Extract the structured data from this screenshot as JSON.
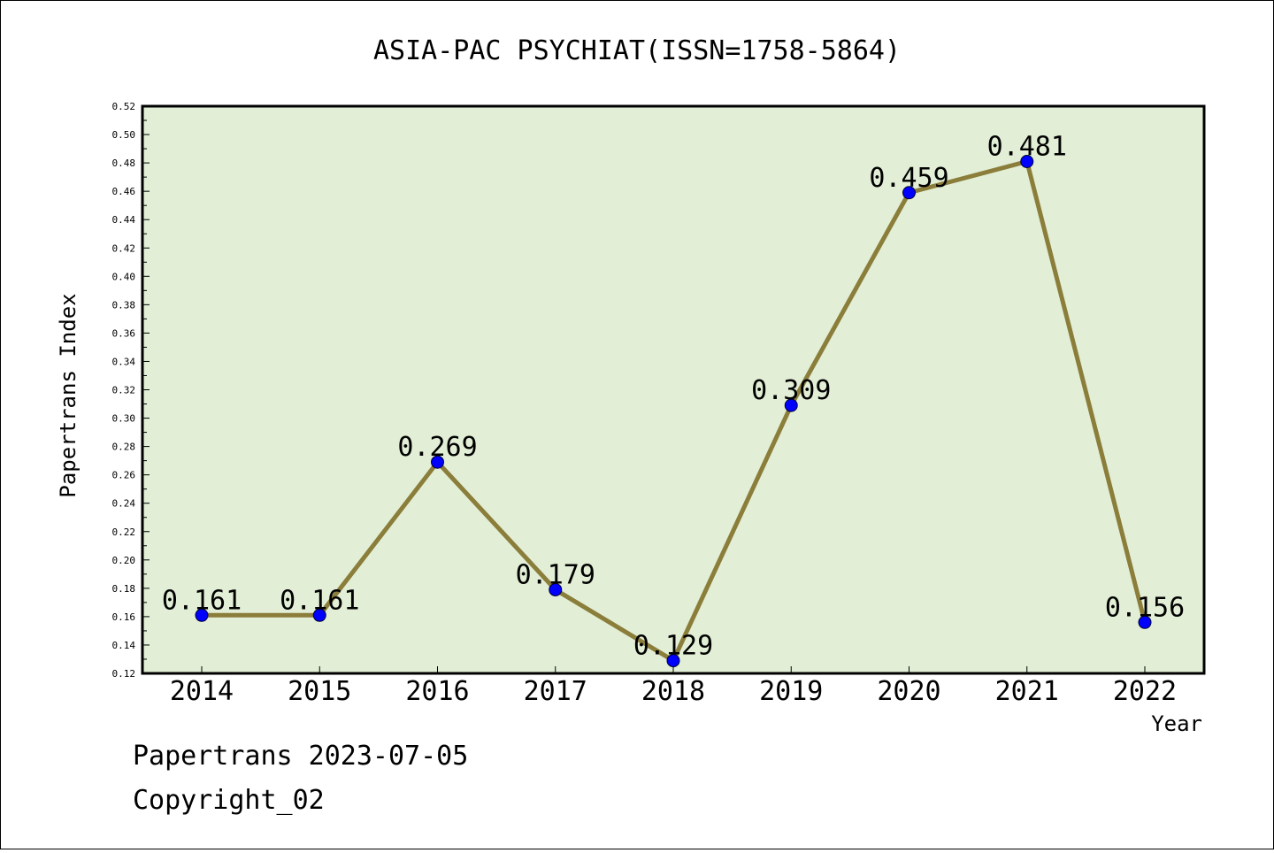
{
  "chart_data": {
    "type": "line",
    "title": "ASIA-PAC PSYCHIAT(ISSN=1758-5864)",
    "xlabel": "Year",
    "ylabel": "Papertrans Index",
    "categories": [
      "2014",
      "2015",
      "2016",
      "2017",
      "2018",
      "2019",
      "2020",
      "2021",
      "2022"
    ],
    "values": [
      0.161,
      0.161,
      0.269,
      0.179,
      0.129,
      0.309,
      0.459,
      0.481,
      0.156
    ],
    "data_labels": [
      "0.161",
      "0.161",
      "0.269",
      "0.179",
      "0.129",
      "0.309",
      "0.459",
      "0.481",
      "0.156"
    ],
    "ylim": [
      0.12,
      0.52
    ],
    "yticks": [
      "0.12",
      "0.14",
      "0.16",
      "0.18",
      "0.20",
      "0.22",
      "0.24",
      "0.26",
      "0.28",
      "0.30",
      "0.32",
      "0.34",
      "0.36",
      "0.38",
      "0.40",
      "0.42",
      "0.44",
      "0.46",
      "0.48",
      "0.50",
      "0.52"
    ],
    "grid": false,
    "colors": {
      "plot_background": "#e2efd6",
      "line": "#8b7d3a",
      "marker": "#0000ff"
    }
  },
  "footer": {
    "line1": "Papertrans 2023-07-05",
    "line2": "Copyright_02"
  }
}
